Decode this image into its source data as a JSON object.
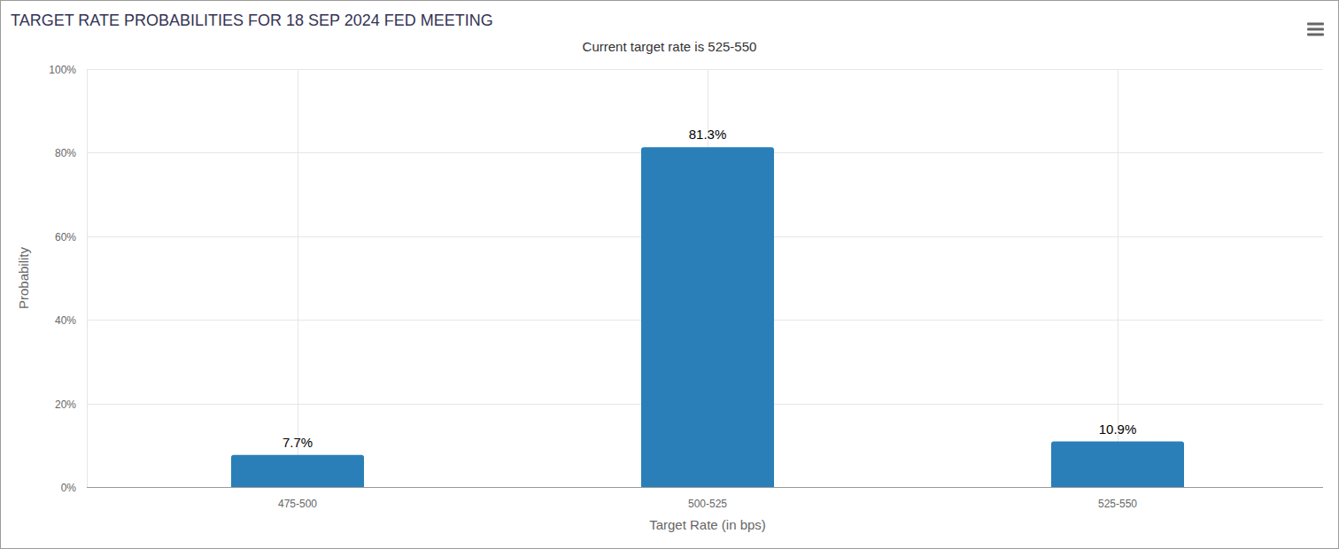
{
  "chart_data": {
    "type": "bar",
    "title": "TARGET RATE PROBABILITIES FOR 18 SEP 2024 FED MEETING",
    "subtitle": "Current target rate is 525-550",
    "x_label": "Target Rate (in bps)",
    "y_label": "Probability",
    "categories": [
      "475-500",
      "500-525",
      "525-550"
    ],
    "values": [
      7.7,
      81.3,
      10.9
    ],
    "value_labels": [
      "7.7%",
      "81.3%",
      "10.9%"
    ],
    "color": "#2a7fb8",
    "ylim": [
      0,
      100
    ],
    "yticks": [
      {
        "value": 0,
        "label": "0%"
      },
      {
        "value": 20,
        "label": "20%"
      },
      {
        "value": 40,
        "label": "40%"
      },
      {
        "value": 60,
        "label": "60%"
      },
      {
        "value": 80,
        "label": "80%"
      },
      {
        "value": 100,
        "label": "100%"
      }
    ],
    "grid": true,
    "data_labels": true
  }
}
